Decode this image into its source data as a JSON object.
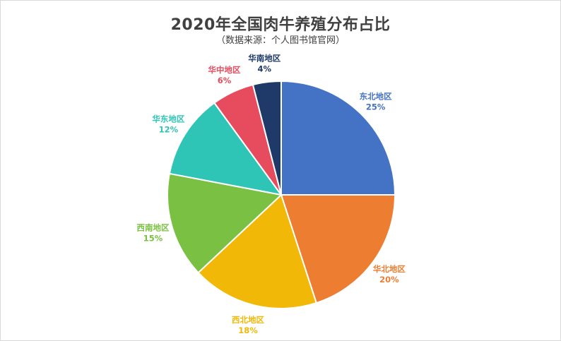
{
  "chart_data": {
    "type": "pie",
    "title": "2020年全国肉牛养殖分布占比",
    "subtitle": "（数据来源：个人图书馆官网）",
    "slices": [
      {
        "name": "东北地区",
        "value": 25,
        "label": "25%",
        "color": "#4472C4"
      },
      {
        "name": "华北地区",
        "value": 20,
        "label": "20%",
        "color": "#ED7D31"
      },
      {
        "name": "西北地区",
        "value": 18,
        "label": "18%",
        "color": "#F2B807"
      },
      {
        "name": "西南地区",
        "value": 15,
        "label": "15%",
        "color": "#7AC143"
      },
      {
        "name": "华东地区",
        "value": 12,
        "label": "12%",
        "color": "#2EC4B6"
      },
      {
        "name": "华中地区",
        "value": 6,
        "label": "6%",
        "color": "#E74C5E"
      },
      {
        "name": "华南地区",
        "value": 4,
        "label": "4%",
        "color": "#1F3A68"
      }
    ],
    "start_angle": "12 o'clock",
    "direction": "clockwise"
  }
}
